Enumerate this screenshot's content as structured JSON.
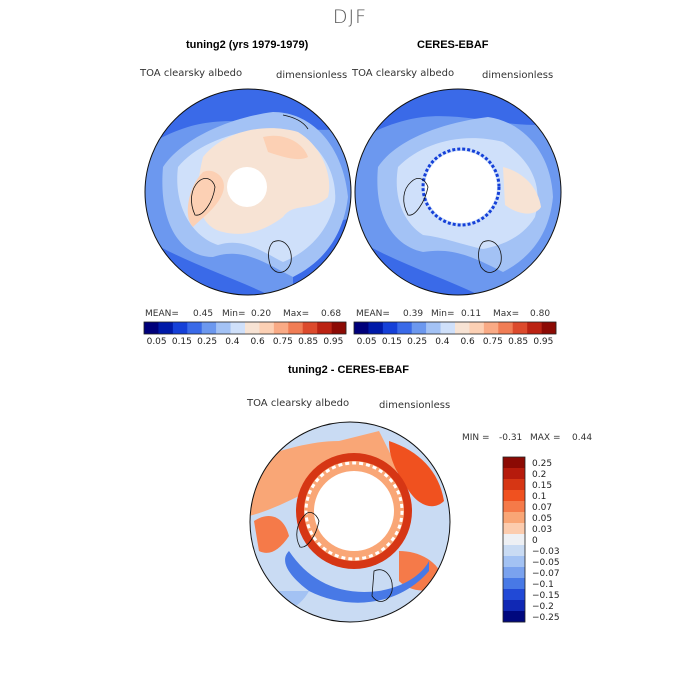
{
  "season": "DJF",
  "colors": {
    "abs": [
      "#00007a",
      "#001aa8",
      "#1540d8",
      "#3a6ae8",
      "#6c98ef",
      "#a3c2f5",
      "#cfe0fa",
      "#f7e3d4",
      "#fcd0b4",
      "#f9aa85",
      "#f07d55",
      "#dc4a2c",
      "#bb2212",
      "#8c0a04"
    ],
    "diff": [
      "#8b0a04",
      "#b61b0c",
      "#d63614",
      "#f0511f",
      "#f57a49",
      "#f9a676",
      "#fcccae",
      "#eef0f4",
      "#c9dbf3",
      "#a3c2f3",
      "#7aa2ee",
      "#4879e6",
      "#2149d6",
      "#1028b4",
      "#00087e"
    ]
  },
  "panels": {
    "model": {
      "title": "tuning2 (yrs 1979-1979)",
      "variable": "TOA clearsky albedo",
      "units": "dimensionless",
      "mean_label": "MEAN=",
      "mean": "0.45",
      "min_label": "Min=",
      "min": "0.20",
      "max_label": "Max=",
      "max": "0.68"
    },
    "obs": {
      "title": "CERES-EBAF",
      "variable": "TOA clearsky albedo",
      "units": "dimensionless",
      "mean_label": "MEAN=",
      "mean": "0.39",
      "min_label": "Min=",
      "min": "0.11",
      "max_label": "Max=",
      "max": "0.80"
    },
    "diff": {
      "title": "tuning2 - CERES-EBAF",
      "variable": "TOA clearsky albedo",
      "units": "dimensionless",
      "min_label": "MIN =",
      "min": "-0.31",
      "max_label": "MAX =",
      "max": "0.44"
    }
  },
  "colorbar_abs_labels": [
    "0.05",
    "0.15",
    "0.25",
    "0.4",
    "0.6",
    "0.75",
    "0.85",
    "0.95"
  ],
  "colorbar_diff_labels": [
    "0.25",
    "0.2",
    "0.15",
    "0.1",
    "0.07",
    "0.05",
    "0.03",
    "0",
    "−0.03",
    "−0.05",
    "−0.07",
    "−0.1",
    "−0.15",
    "−0.2",
    "−0.25"
  ],
  "chart_data": [
    {
      "type": "heatmap",
      "projection": "north-polar-stereographic",
      "title": "tuning2 (yrs 1979-1979)",
      "field": "TOA clearsky albedo",
      "units": "dimensionless",
      "mean": 0.45,
      "min": 0.2,
      "max": 0.68,
      "contour_levels": [
        0.05,
        0.15,
        0.25,
        0.4,
        0.6,
        0.75,
        0.85,
        0.95
      ]
    },
    {
      "type": "heatmap",
      "projection": "north-polar-stereographic",
      "title": "CERES-EBAF",
      "field": "TOA clearsky albedo",
      "units": "dimensionless",
      "mean": 0.39,
      "min": 0.11,
      "max": 0.8,
      "contour_levels": [
        0.05,
        0.15,
        0.25,
        0.4,
        0.6,
        0.75,
        0.85,
        0.95
      ]
    },
    {
      "type": "heatmap",
      "projection": "north-polar-stereographic",
      "title": "tuning2 - CERES-EBAF",
      "field": "TOA clearsky albedo",
      "units": "dimensionless",
      "min": -0.31,
      "max": 0.44,
      "contour_levels": [
        0.25,
        0.2,
        0.15,
        0.1,
        0.07,
        0.05,
        0.03,
        0,
        -0.03,
        -0.05,
        -0.07,
        -0.1,
        -0.15,
        -0.2,
        -0.25
      ]
    }
  ]
}
